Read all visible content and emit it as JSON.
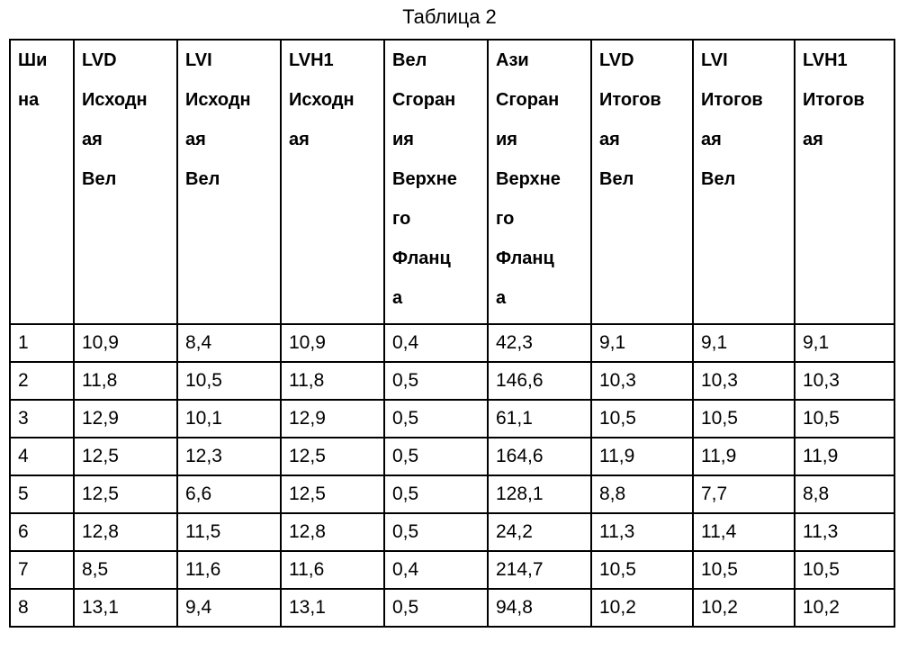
{
  "title": "Таблица 2",
  "headers": [
    [
      "Ши",
      "на"
    ],
    [
      "LVD",
      "Исходн",
      "ая",
      "Вел"
    ],
    [
      "LVI",
      "Исходн",
      "ая",
      "Вел"
    ],
    [
      "LVH1",
      "Исходн",
      "ая"
    ],
    [
      "Вел",
      "Сгоран",
      "ия",
      "Верхне",
      "го",
      "Фланц",
      "а"
    ],
    [
      "Ази",
      "Сгоран",
      "ия",
      "Верхне",
      "го",
      "Фланц",
      "а"
    ],
    [
      "LVD",
      "Итогов",
      "ая",
      "Вел"
    ],
    [
      "LVI",
      "Итогов",
      "ая",
      "Вел"
    ],
    [
      "LVH1",
      "Итогов",
      "ая"
    ]
  ],
  "rows": [
    [
      "1",
      "10,9",
      "8,4",
      "10,9",
      "0,4",
      "42,3",
      "9,1",
      "9,1",
      "9,1"
    ],
    [
      "2",
      "11,8",
      "10,5",
      "11,8",
      "0,5",
      "146,6",
      "10,3",
      "10,3",
      "10,3"
    ],
    [
      "3",
      "12,9",
      "10,1",
      "12,9",
      "0,5",
      "61,1",
      "10,5",
      "10,5",
      "10,5"
    ],
    [
      "4",
      "12,5",
      "12,3",
      "12,5",
      "0,5",
      "164,6",
      "11,9",
      "11,9",
      "11,9"
    ],
    [
      "5",
      "12,5",
      "6,6",
      "12,5",
      "0,5",
      "128,1",
      "8,8",
      "7,7",
      "8,8"
    ],
    [
      "6",
      "12,8",
      "11,5",
      "12,8",
      "0,5",
      "24,2",
      "11,3",
      "11,4",
      "11,3"
    ],
    [
      "7",
      "8,5",
      "11,6",
      "11,6",
      "0,4",
      "214,7",
      "10,5",
      "10,5",
      "10,5"
    ],
    [
      "8",
      "13,1",
      "9,4",
      "13,1",
      "0,5",
      "94,8",
      "10,2",
      "10,2",
      "10,2"
    ]
  ]
}
